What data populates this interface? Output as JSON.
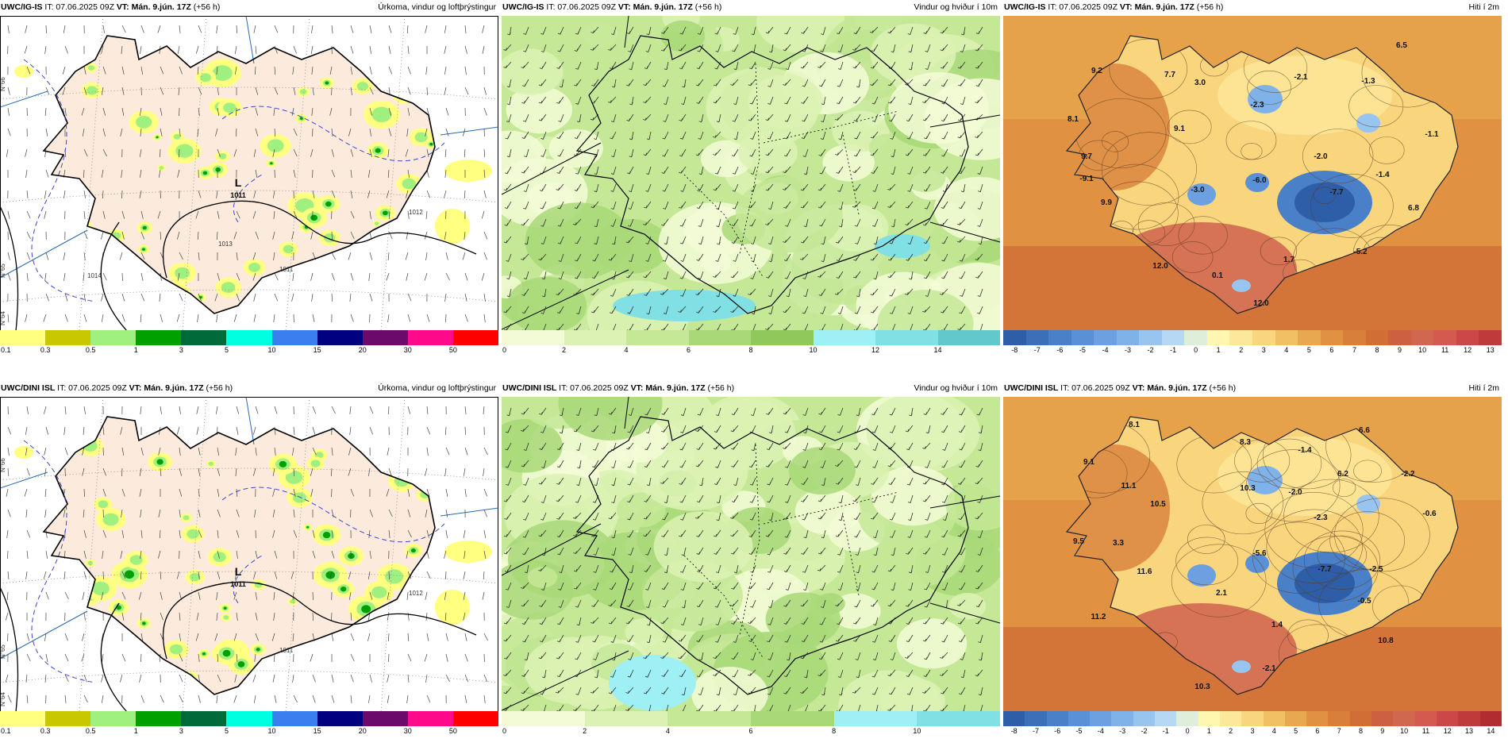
{
  "panels": [
    {
      "id": "p1",
      "type": "precip",
      "model": "UWC/IG-IS",
      "it": "IT: 07.06.2025 09Z",
      "vt": "VT: Mán. 9.jún. 17Z",
      "lead": "(+56 h)",
      "title": "Úrkoma, vindur og loftþrýstingur",
      "ticks": [
        "0.1",
        "0.3",
        "0.5",
        "1",
        "3",
        "5",
        "10",
        "15",
        "20",
        "30",
        "50"
      ],
      "colors": [
        "#ffff80",
        "#c8c800",
        "#a0f080",
        "#00a000",
        "#006a3a",
        "#00ffe0",
        "#3a7ef0",
        "#000080",
        "#6a0a6a",
        "#ff0a8a",
        "#ff0000"
      ],
      "isobar_labels": [
        "1011",
        "1012",
        "1013",
        "1014"
      ],
      "low": {
        "label": "L",
        "value": "1011"
      },
      "grid_labels": [
        "N°66",
        "N°65",
        "N°64"
      ]
    },
    {
      "id": "p2",
      "type": "wind",
      "model": "UWC/IG-IS",
      "it": "IT: 07.06.2025 09Z",
      "vt": "VT: Mán. 9.jún. 17Z",
      "lead": "(+56 h)",
      "title": "Vindur og hviður í 10m",
      "ticks": [
        "0",
        "2",
        "4",
        "6",
        "8",
        "10",
        "12",
        "14"
      ],
      "colors": [
        "#f3fbd6",
        "#dcf2b4",
        "#c4e896",
        "#a8d878",
        "#90c85c",
        "#9ef0f4",
        "#80e0e4",
        "#62c8cc"
      ]
    },
    {
      "id": "p3",
      "type": "temp",
      "model": "UWC/IG-IS",
      "it": "IT: 07.06.2025 09Z",
      "vt": "VT: Mán. 9.jún. 17Z",
      "lead": "(+56 h)",
      "title": "Hiti í 2m",
      "ticks": [
        "-8",
        "-7",
        "-6",
        "-5",
        "-4",
        "-3",
        "-2",
        "-1",
        "0",
        "1",
        "2",
        "3",
        "4",
        "5",
        "6",
        "7",
        "8",
        "9",
        "10",
        "11",
        "12",
        "13"
      ],
      "colors": [
        "#2e5ea8",
        "#3b6fb8",
        "#4a80c8",
        "#5a90d6",
        "#6ca0e0",
        "#80b2ea",
        "#98c4f0",
        "#b6d8f4",
        "#dfeed8",
        "#fff6b0",
        "#fde79a",
        "#f9d67e",
        "#f1c064",
        "#e8a850",
        "#e09242",
        "#d8803a",
        "#d06e36",
        "#cc6040",
        "#d06850",
        "#d45a50",
        "#cc4848",
        "#bf3a3a"
      ],
      "values": [
        "9.2",
        "7.7",
        "3.0",
        "-2.1",
        "-1.3",
        "6.5",
        "8.1",
        "-2.3",
        "9.1",
        "-1.1",
        "9.7",
        "-2.0",
        "-9.1",
        "-6.0",
        "-3.0",
        "-7.7",
        "-1.4",
        "9.9",
        "6.8",
        "12.0",
        "0.1",
        "1.7",
        "-5.2",
        "12.0"
      ]
    },
    {
      "id": "p4",
      "type": "precip",
      "model": "UWC/DINI ISL",
      "it": "IT: 07.06.2025 09Z",
      "vt": "VT: Mán. 9.jún. 17Z",
      "lead": "(+56 h)",
      "title": "Úrkoma, vindur og loftþrýstingur",
      "ticks": [
        "0.1",
        "0.3",
        "0.5",
        "1",
        "3",
        "5",
        "10",
        "15",
        "20",
        "30",
        "50"
      ],
      "colors": [
        "#ffff80",
        "#c8c800",
        "#a0f080",
        "#00a000",
        "#006a3a",
        "#00ffe0",
        "#3a7ef0",
        "#000080",
        "#6a0a6a",
        "#ff0a8a",
        "#ff0000"
      ],
      "isobar_labels": [
        "1011",
        "1012"
      ],
      "low": {
        "label": "L",
        "value": "1011"
      },
      "grid_labels": [
        "N°66",
        "N°65",
        "N°64"
      ]
    },
    {
      "id": "p5",
      "type": "wind",
      "model": "UWC/DINI ISL",
      "it": "IT: 07.06.2025 09Z",
      "vt": "VT: Mán. 9.jún. 17Z",
      "lead": "(+56 h)",
      "title": "Vindur og hviður í 10m",
      "ticks": [
        "0",
        "2",
        "4",
        "6",
        "8",
        "10"
      ],
      "colors": [
        "#f3fbd6",
        "#dcf2b4",
        "#c4e896",
        "#a8d878",
        "#9ef0f4",
        "#80e0e4"
      ]
    },
    {
      "id": "p6",
      "type": "temp",
      "model": "UWC/DINI ISL",
      "it": "IT: 07.06.2025 09Z",
      "vt": "VT: Mán. 9.jún. 17Z",
      "lead": "(+56 h)",
      "title": "Hiti í 2m",
      "ticks": [
        "-8",
        "-7",
        "-6",
        "-5",
        "-4",
        "-3",
        "-2",
        "-1",
        "0",
        "1",
        "2",
        "3",
        "4",
        "5",
        "6",
        "7",
        "8",
        "9",
        "10",
        "11",
        "12",
        "13",
        "14"
      ],
      "colors": [
        "#2e5ea8",
        "#3b6fb8",
        "#4a80c8",
        "#5a90d6",
        "#6ca0e0",
        "#80b2ea",
        "#98c4f0",
        "#b6d8f4",
        "#dfeed8",
        "#fff6b0",
        "#fde79a",
        "#f9d67e",
        "#f1c064",
        "#e8a850",
        "#e09242",
        "#d8803a",
        "#d06e36",
        "#cc6040",
        "#d06850",
        "#d45a50",
        "#cc4848",
        "#bf3a3a",
        "#b02c30"
      ],
      "values": [
        "8.1",
        "6.6",
        "9.1",
        "8.3",
        "-1.4",
        "11.1",
        "10.5",
        "10.3",
        "-2.0",
        "6.2",
        "-2.2",
        "9.5",
        "3.3",
        "-2.3",
        "-0.6",
        "11.6",
        "-5.6",
        "-7.7",
        "-2.5",
        "2.1",
        "-0.5",
        "11.2",
        "1.4",
        "10.8",
        "-2.1",
        "10.3"
      ]
    }
  ]
}
